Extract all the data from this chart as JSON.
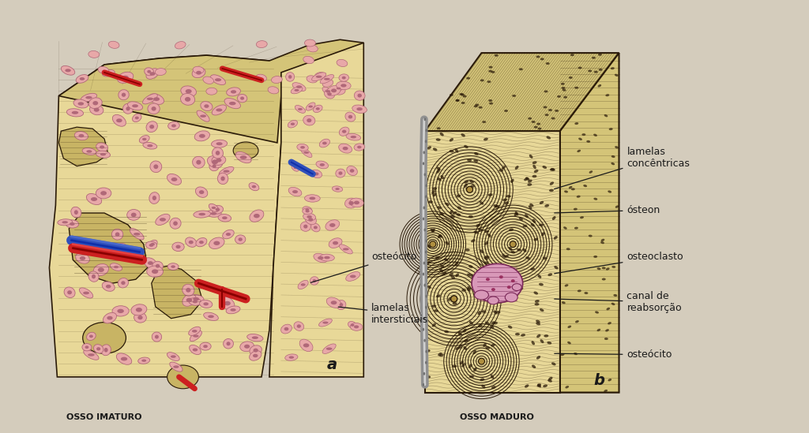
{
  "fig_bg": "#d4ccbc",
  "bone_tan": "#e8d898",
  "bone_tan_mid": "#d4c478",
  "bone_tan_dark": "#c0b060",
  "bone_line": "#2a1a08",
  "cell_pink_face": "#e8a8a8",
  "cell_pink_edge": "#b06878",
  "blood_red": "#cc2020",
  "blood_blue": "#3050bb",
  "osteon_pink_face": "#d898b8",
  "osteon_pink_edge": "#7a2858",
  "label_a": "a",
  "label_b": "b",
  "title_a": "OSSO IMATURO",
  "title_b": "OSSO MADURO",
  "label_fs": 14,
  "title_fs": 8,
  "annot_fs": 9
}
